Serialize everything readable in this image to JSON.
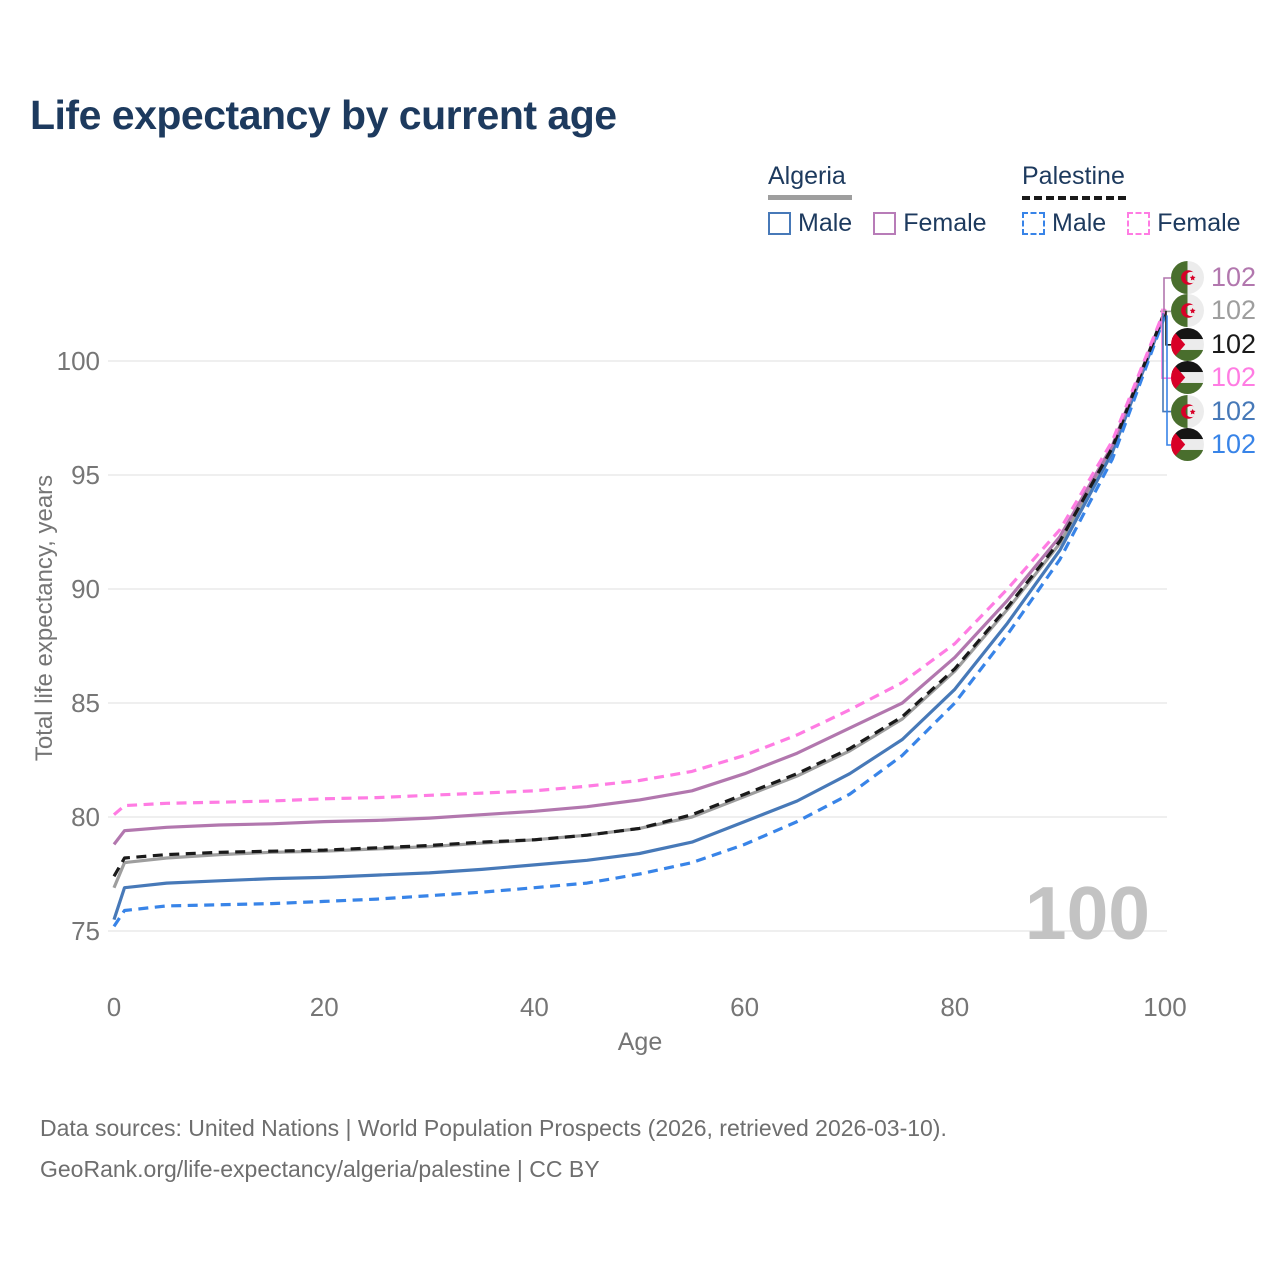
{
  "title": "Life expectancy by current age",
  "watermark": "100",
  "legend": {
    "algeria": {
      "header": "Algeria",
      "all_color": "#9e9e9e",
      "male_label": "Male",
      "male_color": "#4779b8",
      "female_label": "Female",
      "female_color": "#b87cb8"
    },
    "palestine": {
      "header": "Palestine",
      "all_color": "#1a1a1a",
      "male_label": "Male",
      "male_color": "#3884e8",
      "female_label": "Female",
      "female_color": "#ff7ce3"
    }
  },
  "footer": {
    "line1": "Data sources: United Nations | World Population Prospects (2026, retrieved 2026-03-10).",
    "line2": "GeoRank.org/life-expectancy/algeria/palestine | CC BY"
  },
  "chart_data": {
    "type": "line",
    "title": "Life expectancy by current age",
    "xlabel": "Age",
    "ylabel": "Total life expectancy, years",
    "xlim": [
      0,
      100
    ],
    "ylim": [
      74,
      103
    ],
    "x_ticks": [
      0,
      20,
      40,
      60,
      80,
      100
    ],
    "y_ticks": [
      75,
      80,
      85,
      90,
      95,
      100
    ],
    "grid": "horizontal-only",
    "legend_position": "top-right",
    "x": [
      0,
      1,
      5,
      10,
      15,
      20,
      25,
      30,
      35,
      40,
      45,
      50,
      55,
      60,
      65,
      70,
      75,
      80,
      85,
      90,
      95,
      100
    ],
    "series": [
      {
        "name": "Algeria — All",
        "country": "Algeria",
        "sex": "all",
        "color": "#9e9e9e",
        "dash": false,
        "values": [
          76.9,
          78.0,
          78.2,
          78.35,
          78.45,
          78.5,
          78.6,
          78.7,
          78.85,
          79.0,
          79.2,
          79.5,
          80.0,
          80.9,
          81.8,
          82.9,
          84.3,
          86.4,
          89.1,
          92.0,
          96.1,
          102.1
        ]
      },
      {
        "name": "Algeria — Male",
        "country": "Algeria",
        "sex": "male",
        "color": "#4779b8",
        "dash": false,
        "values": [
          75.5,
          76.9,
          77.1,
          77.2,
          77.3,
          77.35,
          77.45,
          77.55,
          77.7,
          77.9,
          78.1,
          78.4,
          78.9,
          79.8,
          80.7,
          81.9,
          83.4,
          85.6,
          88.5,
          91.7,
          96.0,
          102.1
        ]
      },
      {
        "name": "Algeria — Female",
        "country": "Algeria",
        "sex": "female",
        "color": "#b277ae",
        "dash": false,
        "values": [
          78.8,
          79.4,
          79.55,
          79.65,
          79.7,
          79.8,
          79.85,
          79.95,
          80.1,
          80.25,
          80.45,
          80.75,
          81.15,
          81.9,
          82.8,
          83.9,
          85.0,
          87.0,
          89.5,
          92.3,
          96.3,
          102.2
        ]
      },
      {
        "name": "Palestine — Male",
        "country": "Palestine",
        "sex": "male",
        "color": "#3884e8",
        "dash": true,
        "values": [
          75.2,
          75.9,
          76.1,
          76.15,
          76.2,
          76.3,
          76.4,
          76.55,
          76.7,
          76.9,
          77.1,
          77.5,
          78.0,
          78.8,
          79.8,
          81.0,
          82.7,
          85.0,
          88.0,
          91.3,
          95.7,
          102.0
        ]
      },
      {
        "name": "Palestine — All",
        "country": "Palestine",
        "sex": "all",
        "color": "#1a1a1a",
        "dash": true,
        "values": [
          77.4,
          78.2,
          78.35,
          78.45,
          78.5,
          78.55,
          78.65,
          78.75,
          78.9,
          79.0,
          79.2,
          79.5,
          80.1,
          81.0,
          81.9,
          83.0,
          84.4,
          86.5,
          89.2,
          92.1,
          96.2,
          102.2
        ]
      },
      {
        "name": "Palestine — Female",
        "country": "Palestine",
        "sex": "female",
        "color": "#ff7ce3",
        "dash": true,
        "values": [
          80.1,
          80.5,
          80.6,
          80.65,
          80.7,
          80.8,
          80.85,
          80.95,
          81.05,
          81.15,
          81.35,
          81.6,
          82.0,
          82.7,
          83.6,
          84.7,
          85.9,
          87.6,
          90.0,
          92.6,
          96.5,
          102.3
        ]
      }
    ],
    "end_labels": [
      {
        "label": "102",
        "flag": "algeria",
        "series": "Algeria — Female",
        "color": "#b277ae"
      },
      {
        "label": "102",
        "flag": "algeria",
        "series": "Algeria — All",
        "color": "#9e9e9e"
      },
      {
        "label": "102",
        "flag": "palestine",
        "series": "Palestine — All",
        "color": "#1a1a1a"
      },
      {
        "label": "102",
        "flag": "palestine",
        "series": "Palestine — Female",
        "color": "#ff7ce3"
      },
      {
        "label": "102",
        "flag": "algeria",
        "series": "Algeria — Male",
        "color": "#4779b8"
      },
      {
        "label": "102",
        "flag": "palestine",
        "series": "Palestine — Male",
        "color": "#3884e8"
      }
    ]
  }
}
